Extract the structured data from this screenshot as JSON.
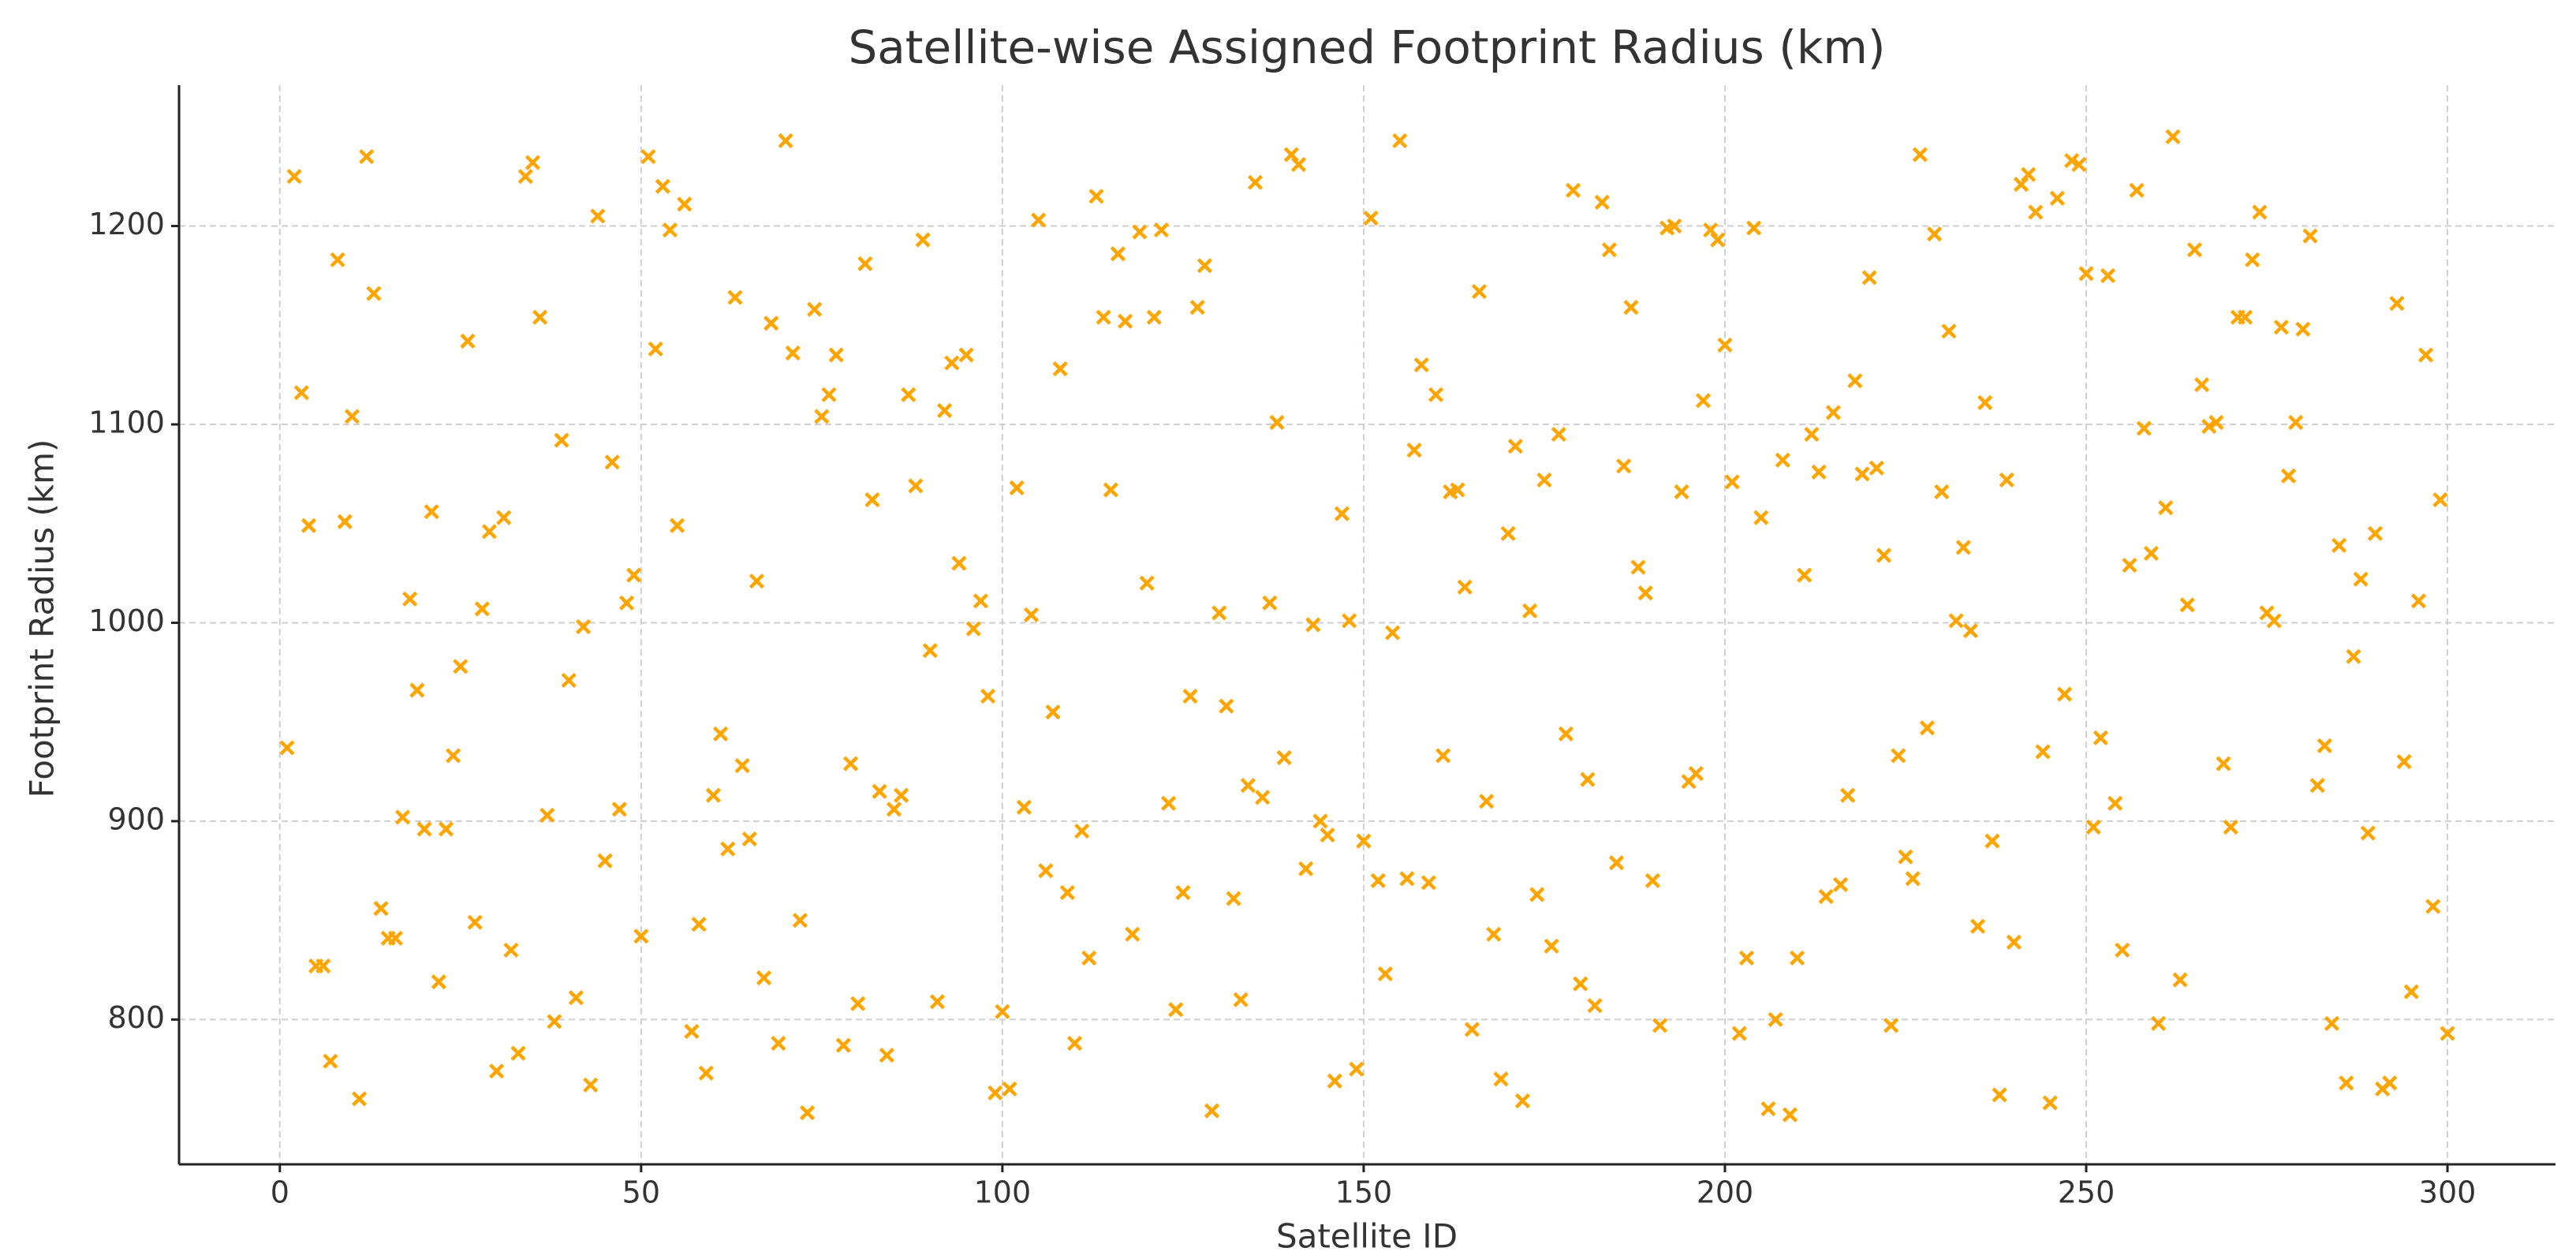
{
  "chart_data": {
    "type": "scatter",
    "title": "Satellite-wise Assigned Footprint Radius (km)",
    "xlabel": "Satellite ID",
    "ylabel": "Footprint Radius (km)",
    "color": "#ffa500",
    "marker": "x",
    "grid": true,
    "x": [
      1,
      2,
      3,
      4,
      5,
      6,
      7,
      8,
      9,
      10,
      11,
      12,
      13,
      14,
      15,
      16,
      17,
      18,
      19,
      20,
      21,
      22,
      23,
      24,
      25,
      26,
      27,
      28,
      29,
      30,
      31,
      32,
      33,
      34,
      35,
      36,
      37,
      38,
      39,
      40,
      41,
      42,
      43,
      44,
      45,
      46,
      47,
      48,
      49,
      50,
      51,
      52,
      53,
      54,
      55,
      56,
      57,
      58,
      59,
      60,
      61,
      62,
      63,
      64,
      65,
      66,
      67,
      68,
      69,
      70,
      71,
      72,
      73,
      74,
      75,
      76,
      77,
      78,
      79,
      80,
      81,
      82,
      83,
      84,
      85,
      86,
      87,
      88,
      89,
      90,
      91,
      92,
      93,
      94,
      95,
      96,
      97,
      98,
      99,
      100,
      101,
      102,
      103,
      104,
      105,
      106,
      107,
      108,
      109,
      110,
      111,
      112,
      113,
      114,
      115,
      116,
      117,
      118,
      119,
      120,
      121,
      122,
      123,
      124,
      125,
      126,
      127,
      128,
      129,
      130,
      131,
      132,
      133,
      134,
      135,
      136,
      137,
      138,
      139,
      140,
      141,
      142,
      143,
      144,
      145,
      146,
      147,
      148,
      149,
      150,
      151,
      152,
      153,
      154,
      155,
      156,
      157,
      158,
      159,
      160,
      161,
      162,
      163,
      164,
      165,
      166,
      167,
      168,
      169,
      170,
      171,
      172,
      173,
      174,
      175,
      176,
      177,
      178,
      179,
      180,
      181,
      182,
      183,
      184,
      185,
      186,
      187,
      188,
      189,
      190,
      191,
      192,
      193,
      194,
      195,
      196,
      197,
      198,
      199,
      200,
      201,
      202,
      203,
      204,
      205,
      206,
      207,
      208,
      209,
      210,
      211,
      212,
      213,
      214,
      215,
      216,
      217,
      218,
      219,
      220,
      221,
      222,
      223,
      224,
      225,
      226,
      227,
      228,
      229,
      230,
      231,
      232,
      233,
      234,
      235,
      236,
      237,
      238,
      239,
      240,
      241,
      242,
      243,
      244,
      245,
      246,
      247,
      248,
      249,
      250,
      251,
      252,
      253,
      254,
      255,
      256,
      257,
      258,
      259,
      260,
      261,
      262,
      263,
      264,
      265,
      266,
      267,
      268,
      269,
      270,
      271,
      272,
      273,
      274,
      275,
      276,
      277,
      278,
      279,
      280,
      281,
      282,
      283,
      284,
      285,
      286,
      287,
      288,
      289,
      290,
      291,
      292,
      293,
      294,
      295,
      296,
      297,
      298,
      299,
      300
    ],
    "values": [
      937,
      1225,
      1116,
      1049,
      827,
      827,
      779,
      1183,
      1051,
      1104,
      760,
      1235,
      1166,
      856,
      841,
      841,
      902,
      1012,
      966,
      896,
      1056,
      819,
      896,
      933,
      978,
      1142,
      849,
      1007,
      1046,
      774,
      1053,
      835,
      783,
      1225,
      1232,
      1154,
      903,
      799,
      1092,
      971,
      811,
      998,
      767,
      1205,
      880,
      1081,
      906,
      1010,
      1024,
      842,
      1235,
      1138,
      1220,
      1198,
      1049,
      1211,
      794,
      848,
      773,
      913,
      944,
      886,
      1164,
      928,
      891,
      1021,
      821,
      1151,
      788,
      1243,
      1136,
      850,
      753,
      1158,
      1104,
      1115,
      1135,
      787,
      929,
      808,
      1181,
      1062,
      915,
      782,
      906,
      913,
      1115,
      1069,
      1193,
      986,
      809,
      1107,
      1131,
      1030,
      1135,
      997,
      1011,
      963,
      763,
      804,
      765,
      1068,
      907,
      1004,
      1203,
      875,
      955,
      1128,
      864,
      788,
      895,
      831,
      1215,
      1154,
      1067,
      1186,
      1152,
      843,
      1197,
      1020,
      1154,
      1198,
      909,
      805,
      864,
      963,
      1159,
      1180,
      754,
      1005,
      958,
      861,
      810,
      918,
      1222,
      912,
      1010,
      1101,
      932,
      1236,
      1231,
      876,
      999,
      900,
      893,
      769,
      1055,
      1001,
      775,
      890,
      1204,
      870,
      823,
      995,
      1243,
      871,
      1087,
      1130,
      869,
      1115,
      933,
      1066,
      1067,
      1018,
      795,
      1167,
      910,
      843,
      770,
      1045,
      1089,
      759,
      1006,
      863,
      1072,
      837,
      1095,
      944,
      1218,
      818,
      921,
      807,
      1212,
      1188,
      879,
      1079,
      1159,
      1028,
      1015,
      870,
      797,
      1199,
      1200,
      1066,
      920,
      924,
      1112,
      1198,
      1193,
      1140,
      1071,
      793,
      831,
      1199,
      1053,
      755,
      800,
      1082,
      752,
      831,
      1024,
      1095,
      1076,
      862,
      1106,
      868,
      913,
      1122,
      1075,
      1174,
      1078,
      1034,
      797,
      933,
      882,
      871,
      1236,
      947,
      1196,
      1066,
      1147,
      1001,
      1038,
      996,
      847,
      1111,
      890,
      762,
      1072,
      839,
      1221,
      1226,
      1207,
      935,
      758,
      1214,
      964,
      1233,
      1231,
      1176,
      897,
      942,
      1175,
      909,
      835,
      1029,
      1218,
      1098,
      1035,
      798,
      1058,
      1245,
      820,
      1009,
      1188,
      1120,
      1099,
      1101,
      929,
      897,
      1154,
      1154,
      1183,
      1207,
      1005,
      1001,
      1149,
      1074,
      1101,
      1148,
      1195,
      918,
      938,
      798,
      1039,
      768,
      983,
      1022,
      894,
      1045,
      765,
      768,
      1161,
      930,
      814,
      1011,
      1135,
      857,
      1062,
      793
    ],
    "xlim": [
      -13.95,
      314.95
    ],
    "xticks": [
      0,
      50,
      100,
      150,
      200,
      250,
      300
    ],
    "ylim": [
      727,
      1271
    ],
    "yticks": [
      800,
      900,
      1000,
      1100,
      1200
    ]
  }
}
